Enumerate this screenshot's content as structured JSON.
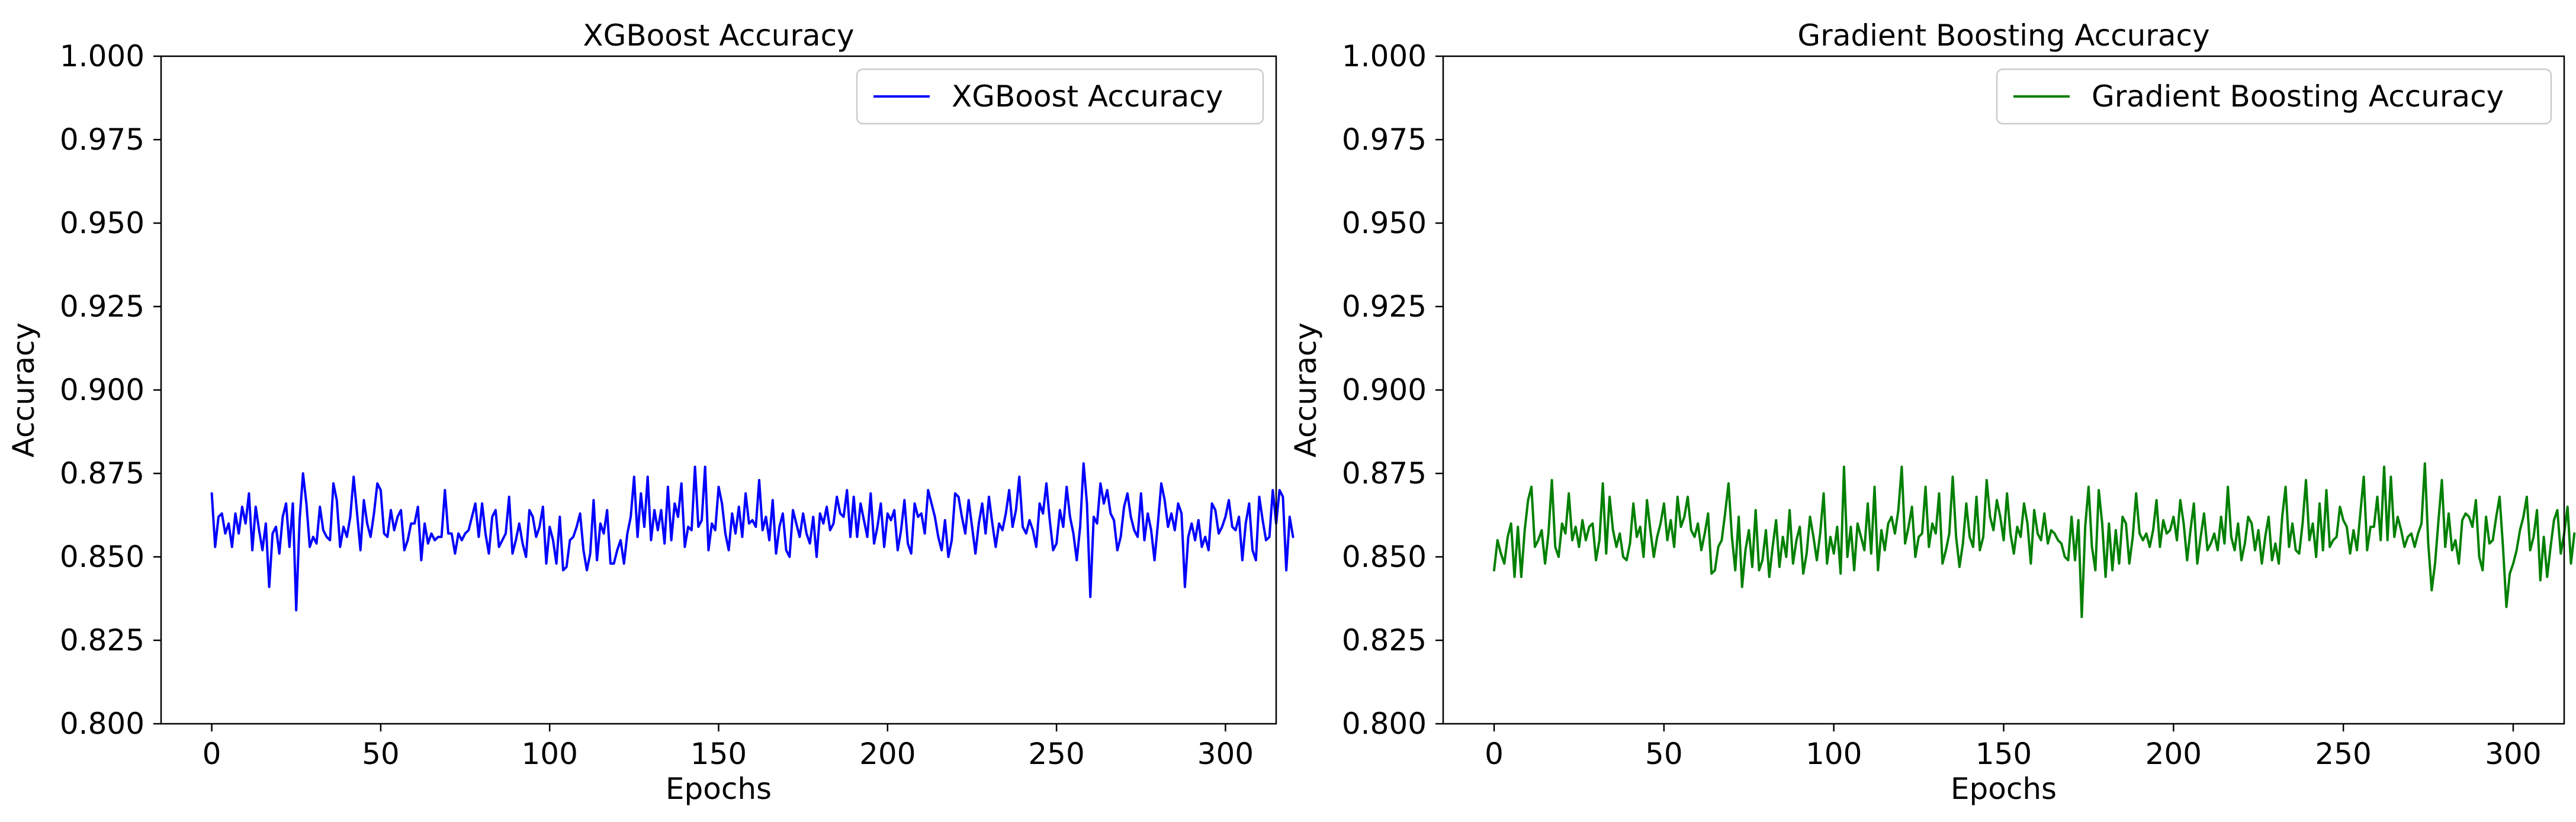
{
  "chart_data": [
    {
      "type": "line",
      "title": "XGBoost Accuracy",
      "xlabel": "Epochs",
      "ylabel": "Accuracy",
      "xlim": [
        -15,
        315
      ],
      "ylim": [
        0.8,
        1.0
      ],
      "x_ticks": [
        "0",
        "50",
        "100",
        "150",
        "200",
        "250",
        "300"
      ],
      "y_ticks": [
        "0.800",
        "0.825",
        "0.850",
        "0.875",
        "0.900",
        "0.925",
        "0.950",
        "0.975",
        "1.000"
      ],
      "grid": false,
      "legend": "top-right",
      "series": [
        {
          "name": "XGBoost Accuracy",
          "color": "#0000ff",
          "x_start": 0,
          "x_step": 1,
          "values": [
            0.869,
            0.853,
            0.862,
            0.863,
            0.857,
            0.86,
            0.853,
            0.863,
            0.857,
            0.865,
            0.86,
            0.869,
            0.852,
            0.865,
            0.858,
            0.852,
            0.86,
            0.841,
            0.857,
            0.859,
            0.851,
            0.862,
            0.866,
            0.853,
            0.866,
            0.834,
            0.861,
            0.875,
            0.866,
            0.853,
            0.856,
            0.854,
            0.865,
            0.858,
            0.856,
            0.855,
            0.872,
            0.867,
            0.853,
            0.859,
            0.856,
            0.862,
            0.874,
            0.863,
            0.852,
            0.867,
            0.86,
            0.856,
            0.863,
            0.872,
            0.87,
            0.857,
            0.856,
            0.864,
            0.858,
            0.862,
            0.864,
            0.852,
            0.855,
            0.86,
            0.86,
            0.865,
            0.849,
            0.86,
            0.854,
            0.857,
            0.855,
            0.856,
            0.856,
            0.87,
            0.857,
            0.857,
            0.851,
            0.857,
            0.855,
            0.857,
            0.858,
            0.862,
            0.866,
            0.856,
            0.866,
            0.857,
            0.851,
            0.862,
            0.864,
            0.853,
            0.855,
            0.857,
            0.868,
            0.851,
            0.855,
            0.86,
            0.854,
            0.85,
            0.864,
            0.862,
            0.856,
            0.859,
            0.865,
            0.848,
            0.859,
            0.855,
            0.848,
            0.862,
            0.846,
            0.847,
            0.855,
            0.856,
            0.859,
            0.863,
            0.852,
            0.846,
            0.851,
            0.867,
            0.849,
            0.86,
            0.857,
            0.864,
            0.848,
            0.848,
            0.852,
            0.855,
            0.848,
            0.857,
            0.862,
            0.874,
            0.856,
            0.869,
            0.859,
            0.874,
            0.855,
            0.864,
            0.858,
            0.864,
            0.854,
            0.871,
            0.855,
            0.866,
            0.862,
            0.872,
            0.853,
            0.859,
            0.858,
            0.877,
            0.859,
            0.861,
            0.877,
            0.852,
            0.86,
            0.858,
            0.871,
            0.866,
            0.857,
            0.852,
            0.863,
            0.857,
            0.865,
            0.856,
            0.869,
            0.86,
            0.861,
            0.859,
            0.873,
            0.858,
            0.862,
            0.855,
            0.867,
            0.851,
            0.859,
            0.863,
            0.852,
            0.85,
            0.864,
            0.86,
            0.856,
            0.863,
            0.857,
            0.854,
            0.862,
            0.85,
            0.863,
            0.86,
            0.865,
            0.858,
            0.86,
            0.868,
            0.863,
            0.862,
            0.87,
            0.856,
            0.868,
            0.856,
            0.866,
            0.861,
            0.856,
            0.869,
            0.854,
            0.859,
            0.866,
            0.853,
            0.863,
            0.861,
            0.864,
            0.852,
            0.858,
            0.867,
            0.854,
            0.851,
            0.866,
            0.862,
            0.863,
            0.857,
            0.87,
            0.866,
            0.862,
            0.856,
            0.852,
            0.861,
            0.85,
            0.855,
            0.869,
            0.868,
            0.862,
            0.857,
            0.867,
            0.859,
            0.851,
            0.86,
            0.866,
            0.857,
            0.868,
            0.86,
            0.853,
            0.86,
            0.858,
            0.863,
            0.87,
            0.859,
            0.864,
            0.874,
            0.859,
            0.857,
            0.861,
            0.858,
            0.853,
            0.866,
            0.863,
            0.872,
            0.861,
            0.852,
            0.854,
            0.864,
            0.859,
            0.871,
            0.862,
            0.857,
            0.849,
            0.859,
            0.878,
            0.866,
            0.838,
            0.862,
            0.86,
            0.872,
            0.866,
            0.87,
            0.863,
            0.861,
            0.852,
            0.856,
            0.865,
            0.869,
            0.862,
            0.858,
            0.856,
            0.869,
            0.855,
            0.863,
            0.858,
            0.849,
            0.86,
            0.872,
            0.867,
            0.859,
            0.863,
            0.858,
            0.866,
            0.863,
            0.841,
            0.856,
            0.86,
            0.855,
            0.861,
            0.853,
            0.856,
            0.852,
            0.866,
            0.864,
            0.857,
            0.859,
            0.862,
            0.867,
            0.859,
            0.858,
            0.862,
            0.849,
            0.86,
            0.866,
            0.852,
            0.849,
            0.868,
            0.861,
            0.855,
            0.856,
            0.87,
            0.86,
            0.87,
            0.868,
            0.846,
            0.862,
            0.856
          ]
        }
      ]
    },
    {
      "type": "line",
      "title": "Gradient Boosting Accuracy",
      "xlabel": "Epochs",
      "ylabel": "Accuracy",
      "xlim": [
        -15,
        315
      ],
      "ylim": [
        0.8,
        1.0
      ],
      "x_ticks": [
        "0",
        "50",
        "100",
        "150",
        "200",
        "250",
        "300"
      ],
      "y_ticks": [
        "0.800",
        "0.825",
        "0.850",
        "0.875",
        "0.900",
        "0.925",
        "0.950",
        "0.975",
        "1.000"
      ],
      "grid": false,
      "legend": "top-right",
      "series": [
        {
          "name": "Gradient Boosting Accuracy",
          "color": "#008000",
          "x_start": 0,
          "x_step": 1,
          "values": [
            0.846,
            0.855,
            0.851,
            0.848,
            0.856,
            0.86,
            0.844,
            0.859,
            0.844,
            0.858,
            0.867,
            0.871,
            0.853,
            0.855,
            0.858,
            0.848,
            0.857,
            0.873,
            0.853,
            0.85,
            0.86,
            0.857,
            0.869,
            0.855,
            0.859,
            0.853,
            0.861,
            0.855,
            0.859,
            0.86,
            0.849,
            0.855,
            0.872,
            0.851,
            0.868,
            0.858,
            0.853,
            0.857,
            0.85,
            0.849,
            0.854,
            0.866,
            0.856,
            0.859,
            0.85,
            0.867,
            0.858,
            0.85,
            0.856,
            0.86,
            0.866,
            0.855,
            0.861,
            0.853,
            0.868,
            0.859,
            0.862,
            0.868,
            0.858,
            0.856,
            0.86,
            0.852,
            0.857,
            0.863,
            0.845,
            0.846,
            0.853,
            0.855,
            0.863,
            0.872,
            0.856,
            0.846,
            0.862,
            0.841,
            0.852,
            0.858,
            0.847,
            0.864,
            0.846,
            0.849,
            0.858,
            0.844,
            0.853,
            0.861,
            0.847,
            0.856,
            0.85,
            0.864,
            0.848,
            0.855,
            0.859,
            0.845,
            0.851,
            0.862,
            0.856,
            0.849,
            0.857,
            0.869,
            0.848,
            0.856,
            0.851,
            0.859,
            0.845,
            0.877,
            0.85,
            0.859,
            0.846,
            0.86,
            0.856,
            0.852,
            0.866,
            0.851,
            0.871,
            0.846,
            0.858,
            0.852,
            0.86,
            0.862,
            0.857,
            0.864,
            0.877,
            0.854,
            0.859,
            0.865,
            0.85,
            0.856,
            0.857,
            0.871,
            0.853,
            0.86,
            0.857,
            0.869,
            0.848,
            0.852,
            0.857,
            0.874,
            0.856,
            0.847,
            0.854,
            0.866,
            0.856,
            0.853,
            0.868,
            0.852,
            0.856,
            0.873,
            0.862,
            0.858,
            0.867,
            0.862,
            0.855,
            0.869,
            0.857,
            0.851,
            0.859,
            0.856,
            0.866,
            0.86,
            0.848,
            0.864,
            0.857,
            0.855,
            0.863,
            0.854,
            0.858,
            0.857,
            0.855,
            0.854,
            0.85,
            0.849,
            0.862,
            0.849,
            0.861,
            0.832,
            0.859,
            0.871,
            0.853,
            0.846,
            0.87,
            0.86,
            0.844,
            0.86,
            0.846,
            0.858,
            0.848,
            0.862,
            0.86,
            0.848,
            0.856,
            0.869,
            0.857,
            0.855,
            0.857,
            0.853,
            0.858,
            0.867,
            0.853,
            0.861,
            0.857,
            0.858,
            0.862,
            0.855,
            0.867,
            0.86,
            0.849,
            0.858,
            0.866,
            0.848,
            0.856,
            0.863,
            0.852,
            0.854,
            0.857,
            0.852,
            0.862,
            0.854,
            0.871,
            0.856,
            0.852,
            0.86,
            0.849,
            0.854,
            0.862,
            0.86,
            0.852,
            0.858,
            0.848,
            0.856,
            0.862,
            0.849,
            0.854,
            0.848,
            0.862,
            0.871,
            0.853,
            0.86,
            0.852,
            0.851,
            0.86,
            0.873,
            0.855,
            0.86,
            0.85,
            0.866,
            0.852,
            0.87,
            0.853,
            0.855,
            0.856,
            0.865,
            0.861,
            0.859,
            0.851,
            0.858,
            0.852,
            0.863,
            0.874,
            0.852,
            0.859,
            0.859,
            0.868,
            0.855,
            0.877,
            0.855,
            0.874,
            0.856,
            0.862,
            0.858,
            0.853,
            0.856,
            0.857,
            0.853,
            0.857,
            0.86,
            0.878,
            0.854,
            0.84,
            0.848,
            0.861,
            0.873,
            0.853,
            0.863,
            0.852,
            0.855,
            0.848,
            0.861,
            0.863,
            0.862,
            0.859,
            0.867,
            0.85,
            0.846,
            0.862,
            0.854,
            0.855,
            0.862,
            0.868,
            0.853,
            0.835,
            0.845,
            0.848,
            0.852,
            0.858,
            0.862,
            0.868,
            0.852,
            0.856,
            0.864,
            0.843,
            0.856,
            0.844,
            0.853,
            0.861,
            0.864,
            0.851,
            0.857,
            0.865,
            0.848,
            0.857
          ]
        }
      ]
    }
  ]
}
